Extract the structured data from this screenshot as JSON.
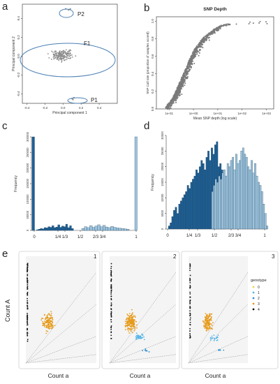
{
  "panels": {
    "a": {
      "letter": "a",
      "xlabel": "Principal component 1",
      "ylabel": "Principal component 2",
      "xticks": [
        "-0.4",
        "-0.2",
        "0.0",
        "0.2",
        "0.4"
      ],
      "yticks": [
        "0.4",
        "0.2",
        "0.0",
        "-0.2",
        "-0.4"
      ],
      "annotations": [
        "P2",
        "F1",
        "P1"
      ],
      "ellipse_color": "#4a7fb5",
      "point_color": "#8c8c8c"
    },
    "b": {
      "letter": "b",
      "title": "SNP Depth",
      "xlabel": "Mean SNP depth (log scale)",
      "ylabel": "SNP Call rate (proportion of samples scored)",
      "xticks": [
        "1e-01",
        "1e+00",
        "1e+01",
        "1e+02",
        "1e+03"
      ],
      "yticks": [
        "0.0",
        "0.2",
        "0.4",
        "0.6",
        "0.8",
        "1.0"
      ]
    },
    "c": {
      "letter": "c",
      "ylabel": "Frequency",
      "xticks": [
        "0",
        "1/4",
        "1/3",
        "1/2",
        "2/3",
        "3/4",
        "1"
      ],
      "yticks": [
        "0",
        "50000",
        "100000",
        "150000",
        "200000",
        "250000",
        "300000"
      ]
    },
    "d": {
      "letter": "d",
      "ylabel": "Frequency",
      "xticks": [
        "0",
        "1/4",
        "1/3",
        "1/2",
        "2/3",
        "3/4",
        "1"
      ],
      "yticks": [
        "0",
        "5000",
        "10000",
        "15000",
        "20000",
        "25000",
        "30000"
      ]
    },
    "e": {
      "letter": "e",
      "ylabel": "Count A",
      "subpanels": [
        {
          "number": "1",
          "xlabel": "Count a"
        },
        {
          "number": "2",
          "xlabel": "Count a"
        },
        {
          "number": "3",
          "xlabel": "Count a"
        }
      ],
      "legend": {
        "title": "genotype",
        "items": [
          {
            "label": "0",
            "color": "#f2d34a"
          },
          {
            "label": "1",
            "color": "#52b5e8"
          },
          {
            "label": "2",
            "color": "#2e8fd1"
          },
          {
            "label": "3",
            "color": "#e69a1a"
          },
          {
            "label": "4",
            "color": "#111111"
          }
        ]
      }
    }
  },
  "chart_data": [
    {
      "type": "scatter",
      "panel": "a",
      "xlabel": "Principal component 1",
      "ylabel": "Principal component 2",
      "xlim": [
        -0.45,
        0.6
      ],
      "ylim": [
        -0.5,
        0.55
      ],
      "clusters": [
        {
          "name": "P2",
          "points": [
            [
              0.03,
              0.5
            ],
            [
              0.08,
              0.5
            ],
            [
              0.06,
              0.49
            ]
          ]
        },
        {
          "name": "F1",
          "center": [
            0.0,
            0.01
          ],
          "n_points": 180,
          "spread": [
            0.14,
            0.06
          ]
        },
        {
          "name": "P1",
          "points": [
            [
              0.1,
              -0.45
            ],
            [
              0.12,
              -0.44
            ],
            [
              0.11,
              -0.46
            ]
          ]
        }
      ]
    },
    {
      "type": "scatter",
      "panel": "b",
      "title": "SNP Depth",
      "xlabel": "Mean SNP depth (log scale)",
      "ylabel": "SNP Call rate (proportion of samples scored)",
      "xlim": [
        0.03,
        2000
      ],
      "ylim": [
        0,
        1.05
      ],
      "log_x": true,
      "curve": [
        [
          0.08,
          0.02
        ],
        [
          0.15,
          0.12
        ],
        [
          0.3,
          0.3
        ],
        [
          0.6,
          0.5
        ],
        [
          1.2,
          0.68
        ],
        [
          3,
          0.82
        ],
        [
          10,
          0.93
        ],
        [
          50,
          0.99
        ],
        [
          500,
          1.0
        ]
      ]
    },
    {
      "type": "bar",
      "panel": "c",
      "ylabel": "Frequency",
      "x": [
        0.0,
        0.2,
        0.4,
        0.5,
        0.8,
        1.0
      ],
      "values": [
        300000,
        12000,
        28000,
        5000,
        18000,
        300000
      ],
      "ylim": [
        0,
        300000
      ]
    },
    {
      "type": "bar",
      "panel": "d",
      "ylabel": "Frequency",
      "x": [
        0.0,
        0.1,
        0.2,
        0.25,
        0.3,
        0.33,
        0.4,
        0.5,
        0.6,
        0.67,
        0.7,
        0.8,
        0.9
      ],
      "values": [
        400,
        9000,
        15000,
        22000,
        20000,
        28000,
        14000,
        6000,
        17000,
        24000,
        21000,
        13000,
        500
      ],
      "ylim": [
        0,
        30000
      ]
    },
    {
      "type": "scatter",
      "panel": "e",
      "ylabel": "Count A",
      "xlabel": "Count a",
      "series": [
        {
          "name": "0"
        },
        {
          "name": "1"
        },
        {
          "name": "2"
        },
        {
          "name": "3"
        },
        {
          "name": "4"
        }
      ]
    }
  ]
}
